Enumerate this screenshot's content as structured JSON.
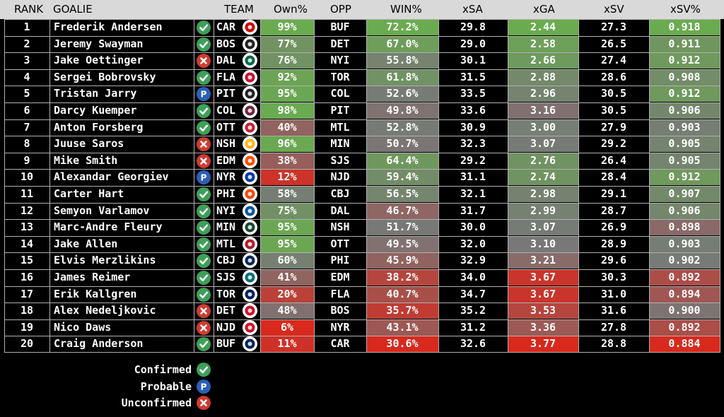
{
  "columns": [
    "RANK",
    "GOALIE",
    "TEAM",
    "Own%",
    "OPP",
    "WIN%",
    "xSA",
    "xGA",
    "xSV",
    "xSV%"
  ],
  "status_icons": {
    "confirmed": "check-icon",
    "probable": "p-icon",
    "unconfirmed": "x-icon"
  },
  "status_colors": {
    "confirmed": "#3e9f58",
    "probable": "#2b5fb8",
    "unconfirmed": "#cf3b30"
  },
  "rows": [
    {
      "rank": "1",
      "goalie": "Frederik Andersen",
      "status": "confirmed",
      "team": "CAR",
      "own": "99%",
      "opp": "BUF",
      "win": "72.2%",
      "xsa": "29.8",
      "xga": "2.44",
      "xsv": "27.3",
      "xsvp": "0.918"
    },
    {
      "rank": "2",
      "goalie": "Jeremy Swayman",
      "status": "confirmed",
      "team": "BOS",
      "own": "77%",
      "opp": "DET",
      "win": "67.0%",
      "xsa": "29.0",
      "xga": "2.58",
      "xsv": "26.5",
      "xsvp": "0.911"
    },
    {
      "rank": "3",
      "goalie": "Jake Oettinger",
      "status": "unconfirmed",
      "team": "DAL",
      "own": "76%",
      "opp": "NYI",
      "win": "55.8%",
      "xsa": "30.1",
      "xga": "2.66",
      "xsv": "27.4",
      "xsvp": "0.912"
    },
    {
      "rank": "4",
      "goalie": "Sergei Bobrovsky",
      "status": "confirmed",
      "team": "FLA",
      "own": "92%",
      "opp": "TOR",
      "win": "61.8%",
      "xsa": "31.5",
      "xga": "2.88",
      "xsv": "28.6",
      "xsvp": "0.908"
    },
    {
      "rank": "5",
      "goalie": "Tristan Jarry",
      "status": "probable",
      "team": "PIT",
      "own": "95%",
      "opp": "COL",
      "win": "52.6%",
      "xsa": "33.5",
      "xga": "2.96",
      "xsv": "30.5",
      "xsvp": "0.912"
    },
    {
      "rank": "6",
      "goalie": "Darcy Kuemper",
      "status": "confirmed",
      "team": "COL",
      "own": "98%",
      "opp": "PIT",
      "win": "49.8%",
      "xsa": "33.6",
      "xga": "3.16",
      "xsv": "30.5",
      "xsvp": "0.906"
    },
    {
      "rank": "7",
      "goalie": "Anton Forsberg",
      "status": "confirmed",
      "team": "OTT",
      "own": "40%",
      "opp": "MTL",
      "win": "52.8%",
      "xsa": "30.9",
      "xga": "3.00",
      "xsv": "27.9",
      "xsvp": "0.903"
    },
    {
      "rank": "8",
      "goalie": "Juuse Saros",
      "status": "unconfirmed",
      "team": "NSH",
      "own": "96%",
      "opp": "MIN",
      "win": "50.7%",
      "xsa": "32.3",
      "xga": "3.07",
      "xsv": "29.2",
      "xsvp": "0.905"
    },
    {
      "rank": "9",
      "goalie": "Mike Smith",
      "status": "unconfirmed",
      "team": "EDM",
      "own": "38%",
      "opp": "SJS",
      "win": "64.4%",
      "xsa": "29.2",
      "xga": "2.76",
      "xsv": "26.4",
      "xsvp": "0.905"
    },
    {
      "rank": "10",
      "goalie": "Alexandar Georgiev",
      "status": "probable",
      "team": "NYR",
      "own": "12%",
      "opp": "NJD",
      "win": "59.4%",
      "xsa": "31.1",
      "xga": "2.74",
      "xsv": "28.4",
      "xsvp": "0.912"
    },
    {
      "rank": "11",
      "goalie": "Carter Hart",
      "status": "confirmed",
      "team": "PHI",
      "own": "58%",
      "opp": "CBJ",
      "win": "56.5%",
      "xsa": "32.1",
      "xga": "2.98",
      "xsv": "29.1",
      "xsvp": "0.907"
    },
    {
      "rank": "12",
      "goalie": "Semyon Varlamov",
      "status": "confirmed",
      "team": "NYI",
      "own": "75%",
      "opp": "DAL",
      "win": "46.7%",
      "xsa": "31.7",
      "xga": "2.99",
      "xsv": "28.7",
      "xsvp": "0.906"
    },
    {
      "rank": "13",
      "goalie": "Marc-Andre Fleury",
      "status": "confirmed",
      "team": "MIN",
      "own": "95%",
      "opp": "NSH",
      "win": "51.7%",
      "xsa": "30.0",
      "xga": "3.07",
      "xsv": "26.9",
      "xsvp": "0.898"
    },
    {
      "rank": "14",
      "goalie": "Jake Allen",
      "status": "confirmed",
      "team": "MTL",
      "own": "95%",
      "opp": "OTT",
      "win": "49.5%",
      "xsa": "32.0",
      "xga": "3.10",
      "xsv": "28.9",
      "xsvp": "0.903"
    },
    {
      "rank": "15",
      "goalie": "Elvis Merzlikins",
      "status": "confirmed",
      "team": "CBJ",
      "own": "60%",
      "opp": "PHI",
      "win": "45.9%",
      "xsa": "32.9",
      "xga": "3.21",
      "xsv": "29.6",
      "xsvp": "0.902"
    },
    {
      "rank": "16",
      "goalie": "James Reimer",
      "status": "confirmed",
      "team": "SJS",
      "own": "41%",
      "opp": "EDM",
      "win": "38.2%",
      "xsa": "34.0",
      "xga": "3.67",
      "xsv": "30.3",
      "xsvp": "0.892"
    },
    {
      "rank": "17",
      "goalie": "Erik Kallgren",
      "status": "confirmed",
      "team": "TOR",
      "own": "20%",
      "opp": "FLA",
      "win": "40.7%",
      "xsa": "34.7",
      "xga": "3.67",
      "xsv": "31.0",
      "xsvp": "0.894"
    },
    {
      "rank": "18",
      "goalie": "Alex Nedeljkovic",
      "status": "unconfirmed",
      "team": "DET",
      "own": "48%",
      "opp": "BOS",
      "win": "35.7%",
      "xsa": "35.2",
      "xga": "3.53",
      "xsv": "31.6",
      "xsvp": "0.900"
    },
    {
      "rank": "19",
      "goalie": "Nico Daws",
      "status": "unconfirmed",
      "team": "NJD",
      "own": "6%",
      "opp": "NYR",
      "win": "43.1%",
      "xsa": "31.2",
      "xga": "3.36",
      "xsv": "27.8",
      "xsvp": "0.892"
    },
    {
      "rank": "20",
      "goalie": "Craig Anderson",
      "status": "confirmed",
      "team": "BUF",
      "own": "11%",
      "opp": "CAR",
      "win": "30.6%",
      "xsa": "32.6",
      "xga": "3.77",
      "xsv": "28.8",
      "xsvp": "0.884"
    }
  ],
  "team_colors": {
    "CAR": "#cc0000",
    "BOS": "#222222",
    "DAL": "#006847",
    "FLA": "#c8102e",
    "PIT": "#222222",
    "COL": "#6f263d",
    "OTT": "#c52032",
    "NSH": "#ffb81c",
    "EDM": "#ff4c00",
    "NYR": "#0038a8",
    "PHI": "#f74902",
    "NYI": "#00539b",
    "MIN": "#154734",
    "MTL": "#af1e2d",
    "CBJ": "#002654",
    "SJS": "#006d75",
    "TOR": "#00205b",
    "DET": "#ce1126",
    "NJD": "#ce1126",
    "BUF": "#002654"
  },
  "legend": [
    {
      "label": "Confirmed",
      "status": "confirmed"
    },
    {
      "label": "Probable",
      "status": "probable"
    },
    {
      "label": "Unconfirmed",
      "status": "unconfirmed"
    }
  ],
  "heat_colors": {
    "good": "#6aab4f",
    "mid": "#787878",
    "bad": "#d8291d"
  }
}
